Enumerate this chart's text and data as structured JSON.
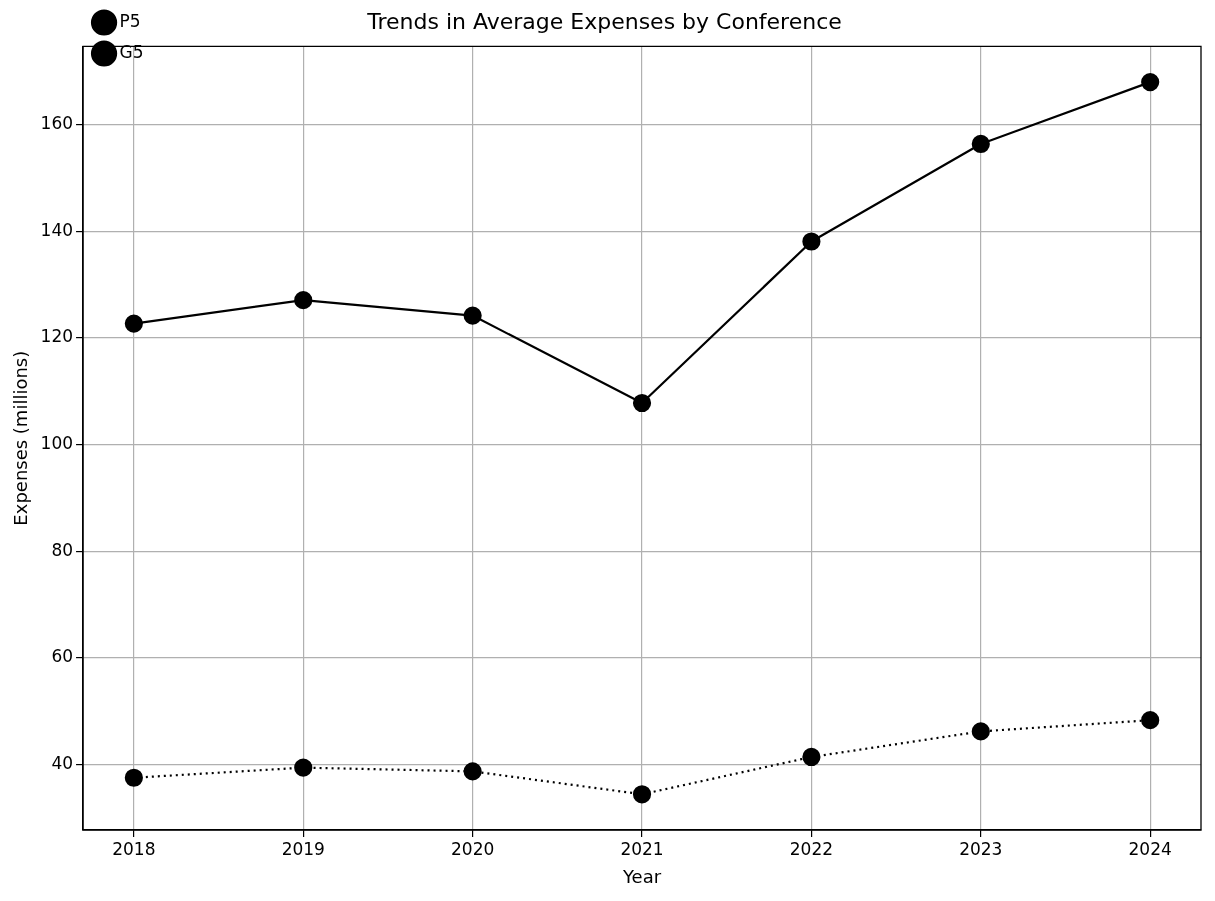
{
  "chart_data": {
    "type": "line",
    "title": "Trends in Average Expenses by Conference",
    "xlabel": "Year",
    "ylabel": "Expenses (millions)",
    "x": [
      2018,
      2019,
      2020,
      2021,
      2022,
      2023,
      2024
    ],
    "series": [
      {
        "name": "P5",
        "color": "#000000",
        "line_style": "solid",
        "values": [
          122.7,
          127.1,
          124.2,
          107.8,
          138.1,
          156.4,
          168.0
        ]
      },
      {
        "name": "G5",
        "color": "#000000",
        "line_style": "dotted",
        "values": [
          37.5,
          39.4,
          38.7,
          34.4,
          41.4,
          46.2,
          48.3
        ]
      }
    ],
    "xlim": [
      2017.7,
      2024.3
    ],
    "xticks": [
      2018,
      2019,
      2020,
      2021,
      2022,
      2023,
      2024
    ],
    "ylim": [
      27.7,
      174.7
    ],
    "yticks": [
      40,
      60,
      80,
      100,
      120,
      140,
      160
    ],
    "grid": true,
    "legend": "top left",
    "marker": "circle"
  }
}
